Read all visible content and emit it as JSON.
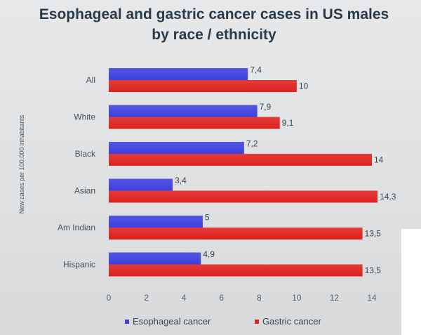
{
  "chart_data": {
    "type": "bar",
    "orientation": "horizontal",
    "title": "Esophageal and gastric cancer cases in US males by race / ethnicity",
    "title_lines": [
      "Esophageal and gastric cancer cases in US males",
      "by race / ethnicity"
    ],
    "ylabel": "New cases per 100.000 inhabitants",
    "xlabel": "",
    "categories": [
      "All",
      "White",
      "Black",
      "Asian",
      "Am Indian",
      "Hispanic"
    ],
    "series": [
      {
        "name": "Esophageal cancer",
        "color": "#3c3fe0",
        "values": [
          7.4,
          7.9,
          7.2,
          3.4,
          5,
          4.9
        ],
        "labels": [
          "7,4",
          "7,9",
          "7,2",
          "3,4",
          "5",
          "4,9"
        ]
      },
      {
        "name": "Gastric cancer",
        "color": "#e0201c",
        "values": [
          10,
          9.1,
          14,
          14.3,
          13.5,
          13.5
        ],
        "labels": [
          "10",
          "9,1",
          "14",
          "14,3",
          "13,5",
          "13,5"
        ]
      }
    ],
    "xlim": [
      0,
      14
    ],
    "xticks": [
      0,
      2,
      4,
      6,
      8,
      10,
      12,
      14
    ],
    "grid": false,
    "legend": "bottom"
  }
}
